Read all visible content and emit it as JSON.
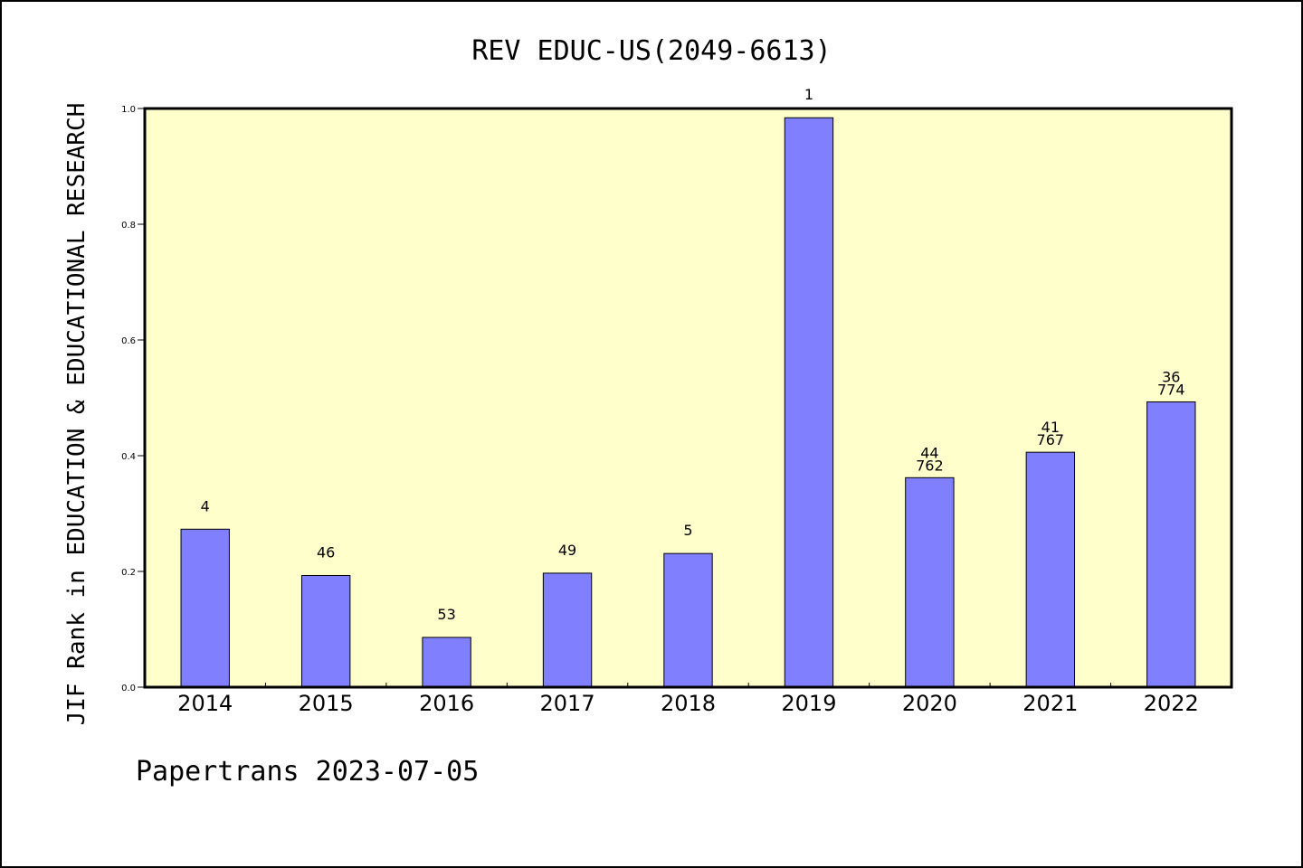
{
  "chart_data": {
    "type": "bar",
    "title": "REV EDUC-US(2049-6613)",
    "ylabel": "JIF Rank in EDUCATION & EDUCATIONAL RESEARCH",
    "xlabel": "",
    "categories": [
      "2014",
      "2015",
      "2016",
      "2017",
      "2018",
      "2019",
      "2020",
      "2021",
      "2022"
    ],
    "values": [
      0.273,
      0.193,
      0.086,
      0.197,
      0.231,
      0.984,
      0.362,
      0.406,
      0.493
    ],
    "data_labels": [
      [
        "4"
      ],
      [
        "46"
      ],
      [
        "53"
      ],
      [
        "49"
      ],
      [
        "5"
      ],
      [
        "1"
      ],
      [
        "44",
        "762"
      ],
      [
        "41",
        "767"
      ],
      [
        "36",
        "774"
      ]
    ],
    "ylim": [
      0,
      1.0
    ],
    "yticks": [
      "0.0",
      "0.2",
      "0.4",
      "0.6",
      "0.8",
      "1.0"
    ],
    "grid": false,
    "colors": {
      "bar": "#8080ff",
      "plot_background": "#ffffcc"
    }
  },
  "footer": {
    "text": "Papertrans 2023-07-05"
  }
}
